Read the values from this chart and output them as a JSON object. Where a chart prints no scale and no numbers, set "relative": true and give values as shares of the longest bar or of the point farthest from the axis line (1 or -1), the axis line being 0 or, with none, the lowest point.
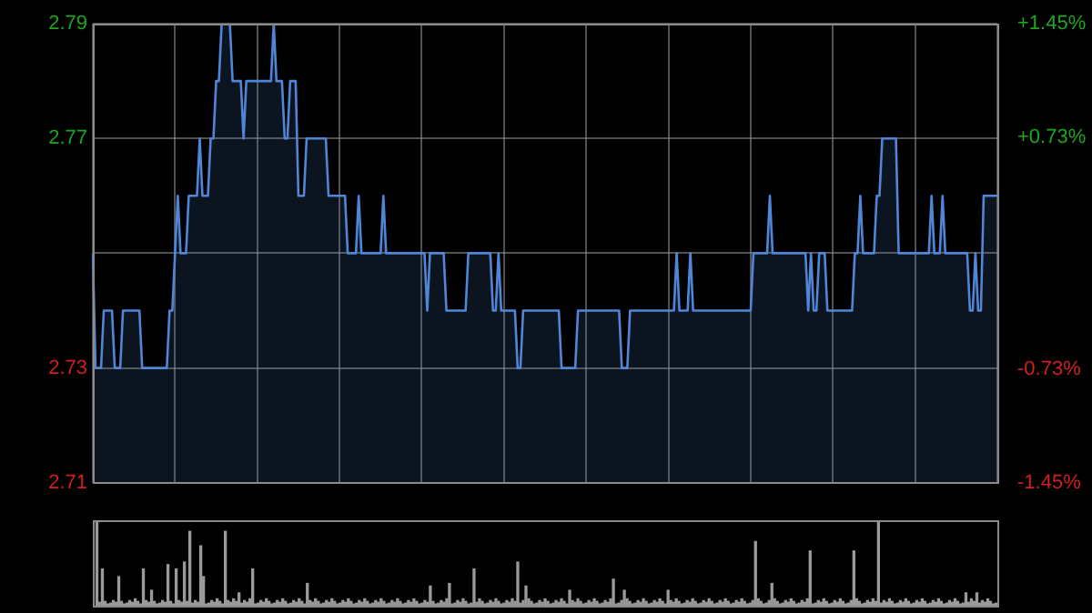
{
  "chart_data": [
    {
      "type": "area",
      "color": "#4f86d8",
      "marker": "none",
      "grid": true,
      "tick_labels": "y",
      "categories": [
        null,
        null,
        null,
        null,
        null,
        null,
        null,
        null,
        null,
        null,
        null,
        null,
        null,
        null,
        null,
        null,
        null,
        null,
        null,
        null,
        null,
        null,
        null,
        null,
        null,
        null,
        null,
        null,
        null,
        null,
        null,
        null,
        null,
        null,
        null,
        null,
        null,
        null,
        null,
        null,
        null,
        null,
        null,
        null,
        null,
        null,
        null,
        null,
        null,
        null,
        null,
        null,
        null,
        null,
        null,
        null,
        null,
        null,
        null,
        null,
        null,
        null,
        null,
        null,
        null,
        null,
        null,
        null,
        null,
        null,
        null,
        null,
        null,
        null,
        null,
        null,
        null,
        null,
        null,
        null,
        null,
        null,
        null,
        null,
        null,
        null,
        null,
        null,
        null,
        null,
        null,
        null,
        null,
        null,
        null,
        null,
        null,
        null,
        null,
        null,
        null,
        null,
        null,
        null,
        null,
        null,
        null,
        null,
        null,
        null,
        null,
        null,
        null,
        null,
        null,
        null,
        null,
        null,
        null,
        null,
        null,
        null,
        null,
        null,
        null,
        null,
        null,
        null,
        null,
        null,
        null,
        null,
        null,
        null,
        null,
        null,
        null,
        null,
        null,
        null,
        null,
        null,
        null,
        null,
        null,
        null,
        null,
        null,
        null,
        null,
        null,
        null,
        null,
        null,
        null,
        null,
        null,
        null,
        null,
        null,
        null,
        null,
        null,
        null,
        null,
        null,
        null,
        null,
        null,
        null,
        null,
        null,
        null,
        null,
        null,
        null,
        null,
        null,
        null,
        null,
        null,
        null,
        null,
        null,
        null,
        null,
        null,
        null,
        null,
        null,
        null,
        null,
        null,
        null,
        null,
        null,
        null,
        null,
        null,
        null,
        null,
        null,
        null,
        null,
        null,
        null,
        null,
        null,
        null,
        null,
        null,
        null,
        null,
        null,
        null,
        null,
        null,
        null,
        null,
        null,
        null,
        null,
        null,
        null,
        null,
        null,
        null,
        null,
        null,
        null,
        null,
        null,
        null,
        null,
        null,
        null,
        null,
        null,
        null,
        null,
        null,
        null,
        null,
        null,
        null,
        null,
        null,
        null,
        null,
        null,
        null,
        null,
        null,
        null,
        null,
        null,
        null,
        null,
        null,
        null,
        null,
        null,
        null,
        null,
        null,
        null,
        null,
        null,
        null,
        null,
        null,
        null,
        null,
        null,
        null,
        null,
        null,
        null,
        null,
        null,
        null,
        null,
        null,
        null,
        null,
        null,
        null,
        null,
        null,
        null,
        null,
        null,
        null,
        null,
        null,
        null,
        null,
        null,
        null,
        null,
        null,
        null,
        null,
        null,
        null,
        null,
        null,
        null,
        null,
        null,
        null,
        null,
        null,
        null,
        null,
        null,
        null,
        null,
        null,
        null,
        null,
        null,
        null,
        null,
        null,
        null,
        null,
        null,
        null,
        null,
        null
      ],
      "ylim": [
        2.71,
        2.79
      ],
      "yticks": [
        2.71,
        2.73,
        {
          "value": 2.75,
          "label": null
        },
        2.77,
        2.79
      ],
      "y2lim": [
        -1.45,
        1.45
      ],
      "y2ticks": [
        {
          "value": -1.45,
          "label": "-1.45%"
        },
        {
          "value": -0.73,
          "label": "-0.73%"
        },
        {
          "value": 0,
          "label": null
        },
        {
          "value": 0.73,
          "label": "+0.73%"
        },
        {
          "value": 1.45,
          "label": "+1.45%"
        }
      ],
      "values": [
        2.75,
        2.73,
        2.73,
        2.73,
        2.74,
        2.74,
        2.74,
        2.74,
        2.73,
        2.73,
        2.73,
        2.74,
        2.74,
        2.74,
        2.74,
        2.74,
        2.74,
        2.74,
        2.73,
        2.73,
        2.73,
        2.73,
        2.73,
        2.73,
        2.73,
        2.73,
        2.73,
        2.73,
        2.74,
        2.74,
        2.75,
        2.76,
        2.75,
        2.75,
        2.75,
        2.76,
        2.76,
        2.76,
        2.76,
        2.77,
        2.76,
        2.76,
        2.76,
        2.77,
        2.77,
        2.78,
        2.78,
        2.79,
        2.79,
        2.79,
        2.79,
        2.78,
        2.78,
        2.78,
        2.78,
        2.77,
        2.78,
        2.78,
        2.78,
        2.78,
        2.78,
        2.78,
        2.78,
        2.78,
        2.78,
        2.78,
        2.79,
        2.78,
        2.78,
        2.78,
        2.77,
        2.77,
        2.78,
        2.78,
        2.78,
        2.76,
        2.76,
        2.76,
        2.77,
        2.77,
        2.77,
        2.77,
        2.77,
        2.77,
        2.77,
        2.77,
        2.76,
        2.76,
        2.76,
        2.76,
        2.76,
        2.76,
        2.76,
        2.75,
        2.75,
        2.75,
        2.75,
        2.76,
        2.75,
        2.75,
        2.75,
        2.75,
        2.75,
        2.75,
        2.75,
        2.75,
        2.76,
        2.75,
        2.75,
        2.75,
        2.75,
        2.75,
        2.75,
        2.75,
        2.75,
        2.75,
        2.75,
        2.75,
        2.75,
        2.75,
        2.75,
        2.75,
        2.74,
        2.75,
        2.75,
        2.75,
        2.75,
        2.75,
        2.75,
        2.74,
        2.74,
        2.74,
        2.74,
        2.74,
        2.74,
        2.74,
        2.74,
        2.75,
        2.75,
        2.75,
        2.75,
        2.75,
        2.75,
        2.75,
        2.75,
        2.75,
        2.74,
        2.74,
        2.75,
        2.74,
        2.74,
        2.74,
        2.74,
        2.74,
        2.74,
        2.73,
        2.73,
        2.74,
        2.74,
        2.74,
        2.74,
        2.74,
        2.74,
        2.74,
        2.74,
        2.74,
        2.74,
        2.74,
        2.74,
        2.74,
        2.74,
        2.73,
        2.73,
        2.73,
        2.73,
        2.73,
        2.73,
        2.74,
        2.74,
        2.74,
        2.74,
        2.74,
        2.74,
        2.74,
        2.74,
        2.74,
        2.74,
        2.74,
        2.74,
        2.74,
        2.74,
        2.74,
        2.74,
        2.73,
        2.73,
        2.73,
        2.74,
        2.74,
        2.74,
        2.74,
        2.74,
        2.74,
        2.74,
        2.74,
        2.74,
        2.74,
        2.74,
        2.74,
        2.74,
        2.74,
        2.74,
        2.74,
        2.74,
        2.75,
        2.74,
        2.74,
        2.74,
        2.74,
        2.75,
        2.74,
        2.74,
        2.74,
        2.74,
        2.74,
        2.74,
        2.74,
        2.74,
        2.74,
        2.74,
        2.74,
        2.74,
        2.74,
        2.74,
        2.74,
        2.74,
        2.74,
        2.74,
        2.74,
        2.74,
        2.74,
        2.74,
        2.75,
        2.75,
        2.75,
        2.75,
        2.75,
        2.75,
        2.76,
        2.75,
        2.75,
        2.75,
        2.75,
        2.75,
        2.75,
        2.75,
        2.75,
        2.75,
        2.75,
        2.75,
        2.75,
        2.75,
        2.74,
        2.75,
        2.74,
        2.74,
        2.75,
        2.75,
        2.75,
        2.74,
        2.74,
        2.74,
        2.74,
        2.74,
        2.74,
        2.74,
        2.74,
        2.74,
        2.74,
        2.75,
        2.75,
        2.76,
        2.75,
        2.75,
        2.75,
        2.75,
        2.75,
        2.76,
        2.76,
        2.77,
        2.77,
        2.77,
        2.77,
        2.77,
        2.77,
        2.75,
        2.75,
        2.75,
        2.75,
        2.75,
        2.75,
        2.75,
        2.75,
        2.75,
        2.75,
        2.75,
        2.75,
        2.76,
        2.75,
        2.75,
        2.75,
        2.76,
        2.75,
        2.75,
        2.75,
        2.75,
        2.75,
        2.75,
        2.75,
        2.75,
        2.75,
        2.74,
        2.74,
        2.75,
        2.74,
        2.74,
        2.76,
        2.76,
        2.76,
        2.76,
        2.76,
        2.76
      ]
    },
    {
      "type": "bar",
      "color": "#9a9a9a",
      "relative": true,
      "tick_labels": false,
      "categories": [
        null,
        null,
        null,
        null,
        null,
        null,
        null,
        null,
        null,
        null,
        null,
        null,
        null,
        null,
        null,
        null,
        null,
        null,
        null,
        null,
        null,
        null,
        null,
        null,
        null,
        null,
        null,
        null,
        null,
        null,
        null,
        null,
        null,
        null,
        null,
        null,
        null,
        null,
        null,
        null,
        null,
        null,
        null,
        null,
        null,
        null,
        null,
        null,
        null,
        null,
        null,
        null,
        null,
        null,
        null,
        null,
        null,
        null,
        null,
        null,
        null,
        null,
        null,
        null,
        null,
        null,
        null,
        null,
        null,
        null,
        null,
        null,
        null,
        null,
        null,
        null,
        null,
        null,
        null,
        null,
        null,
        null,
        null,
        null,
        null,
        null,
        null,
        null,
        null,
        null,
        null,
        null,
        null,
        null,
        null,
        null,
        null,
        null,
        null,
        null,
        null,
        null,
        null,
        null,
        null,
        null,
        null,
        null,
        null,
        null,
        null,
        null,
        null,
        null,
        null,
        null,
        null,
        null,
        null,
        null,
        null,
        null,
        null,
        null,
        null,
        null,
        null,
        null,
        null,
        null,
        null,
        null,
        null,
        null,
        null,
        null,
        null,
        null,
        null,
        null,
        null,
        null,
        null,
        null,
        null,
        null,
        null,
        null,
        null,
        null,
        null,
        null,
        null,
        null,
        null,
        null,
        null,
        null,
        null,
        null,
        null,
        null,
        null,
        null,
        null,
        null,
        null,
        null,
        null,
        null,
        null,
        null,
        null,
        null,
        null,
        null,
        null,
        null,
        null,
        null,
        null,
        null,
        null,
        null,
        null,
        null,
        null,
        null,
        null,
        null,
        null,
        null,
        null,
        null,
        null,
        null,
        null,
        null,
        null,
        null,
        null,
        null,
        null,
        null,
        null,
        null,
        null,
        null,
        null,
        null,
        null,
        null,
        null,
        null,
        null,
        null,
        null,
        null,
        null,
        null,
        null,
        null,
        null,
        null,
        null,
        null,
        null,
        null,
        null,
        null,
        null,
        null,
        null,
        null,
        null,
        null,
        null,
        null,
        null,
        null,
        null,
        null,
        null,
        null,
        null,
        null,
        null,
        null,
        null,
        null,
        null,
        null,
        null,
        null,
        null,
        null,
        null,
        null,
        null,
        null,
        null,
        null,
        null,
        null,
        null,
        null,
        null,
        null,
        null,
        null,
        null,
        null,
        null,
        null,
        null,
        null,
        null,
        null,
        null,
        null,
        null,
        null,
        null,
        null,
        null,
        null,
        null,
        null,
        null,
        null,
        null,
        null,
        null,
        null,
        null,
        null,
        null,
        null,
        null,
        null,
        null,
        null,
        null,
        null,
        null,
        null,
        null,
        null,
        null,
        null,
        null,
        null,
        null,
        null,
        null,
        null,
        null,
        null,
        null,
        null,
        null,
        null,
        null,
        null,
        null,
        null,
        null,
        null,
        null,
        null,
        null
      ],
      "values": [
        null,
        1,
        0.04,
        0.43,
        0.05,
        0.02,
        0.03,
        0.06,
        0.04,
        0.34,
        0.05,
        0.02,
        0.03,
        0.06,
        0.04,
        0.08,
        0.05,
        0.02,
        0.43,
        0.06,
        0.04,
        0.18,
        0.05,
        0.02,
        0.03,
        0.06,
        0.04,
        0.48,
        0.05,
        0.02,
        0.43,
        0.06,
        0.04,
        0.51,
        0.05,
        0.87,
        0.03,
        0.06,
        0.04,
        0.7,
        0.34,
        0.02,
        0.03,
        0.06,
        0.04,
        0.08,
        0.05,
        0.02,
        0.87,
        0.06,
        0.04,
        0.08,
        0.05,
        0.15,
        0.03,
        0.06,
        0.04,
        0.08,
        0.43,
        0.02,
        0.03,
        0.06,
        0.04,
        0.08,
        0.05,
        0.02,
        0.03,
        0.06,
        0.04,
        0.08,
        0.05,
        0.02,
        0.03,
        0.06,
        0.04,
        0.08,
        0.05,
        0.02,
        0.26,
        0.06,
        0.04,
        0.08,
        0.05,
        0.02,
        0.03,
        0.06,
        0.04,
        0.08,
        0.05,
        0.02,
        0.03,
        0.06,
        0.04,
        0.08,
        0.05,
        0.02,
        0.03,
        0.06,
        0.04,
        0.08,
        0.05,
        0.02,
        0.03,
        0.06,
        0.04,
        0.08,
        0.05,
        0.02,
        0.03,
        0.06,
        0.04,
        0.08,
        0.05,
        0.02,
        0.03,
        0.06,
        0.04,
        0.08,
        0.05,
        0.02,
        0.03,
        0.06,
        0.04,
        0.23,
        0.05,
        0.02,
        0.03,
        0.06,
        0.04,
        0.08,
        0.26,
        0.02,
        0.03,
        0.06,
        0.04,
        0.08,
        0.05,
        0.02,
        0.03,
        0.43,
        0.04,
        0.08,
        0.05,
        0.02,
        0.03,
        0.06,
        0.04,
        0.08,
        0.05,
        0.02,
        0.03,
        0.06,
        0.04,
        0.08,
        0.05,
        0.51,
        0.03,
        0.06,
        0.23,
        0.08,
        0.05,
        0.02,
        0.03,
        0.06,
        0.04,
        0.08,
        0.05,
        0.02,
        0.03,
        0.06,
        0.04,
        0.08,
        0.05,
        0.02,
        0.18,
        0.06,
        0.04,
        0.08,
        0.05,
        0.02,
        0.03,
        0.06,
        0.04,
        0.08,
        0.05,
        0.02,
        0.03,
        0.06,
        0.04,
        0.08,
        0.31,
        0.02,
        0.03,
        0.06,
        0.18,
        0.08,
        0.05,
        0.02,
        0.03,
        0.06,
        0.04,
        0.08,
        0.05,
        0.02,
        0.03,
        0.06,
        0.04,
        0.08,
        0.05,
        0.02,
        0.18,
        0.06,
        0.04,
        0.08,
        0.05,
        0.02,
        0.03,
        0.06,
        0.04,
        0.08,
        0.05,
        0.02,
        0.03,
        0.06,
        0.04,
        0.08,
        0.05,
        0.02,
        0.03,
        0.06,
        0.04,
        0.08,
        0.05,
        0.02,
        0.03,
        0.06,
        0.04,
        0.08,
        0.05,
        0.02,
        0.03,
        0.06,
        0.75,
        0.08,
        0.05,
        0.02,
        0.03,
        0.06,
        0.26,
        0.08,
        0.05,
        0.02,
        0.03,
        0.06,
        0.04,
        0.08,
        0.05,
        0.02,
        0.03,
        0.06,
        0.04,
        0.08,
        0.64,
        0.02,
        0.03,
        0.06,
        0.04,
        0.08,
        0.05,
        0.02,
        0.03,
        0.06,
        0.04,
        0.08,
        0.05,
        0.02,
        0.03,
        0.06,
        0.64,
        0.08,
        0.05,
        0.02,
        0.03,
        0.06,
        0.04,
        0.08,
        0.05,
        1,
        0.03,
        0.06,
        0.04,
        0.08,
        0.05,
        0.02,
        0.03,
        0.06,
        0.04,
        0.08,
        0.05,
        0.02,
        0.03,
        0.06,
        0.04,
        0.08,
        0.05,
        0.02,
        0.03,
        0.06,
        0.04,
        0.08,
        0.05,
        0.02,
        0.03,
        0.06,
        0.04,
        0.08,
        0.05,
        0.02,
        0.03,
        0.15,
        0.04,
        0.08,
        0.05,
        0.15,
        0.03,
        0.06,
        0.04,
        0.08,
        0.05,
        0.02,
        0.03
      ]
    }
  ]
}
